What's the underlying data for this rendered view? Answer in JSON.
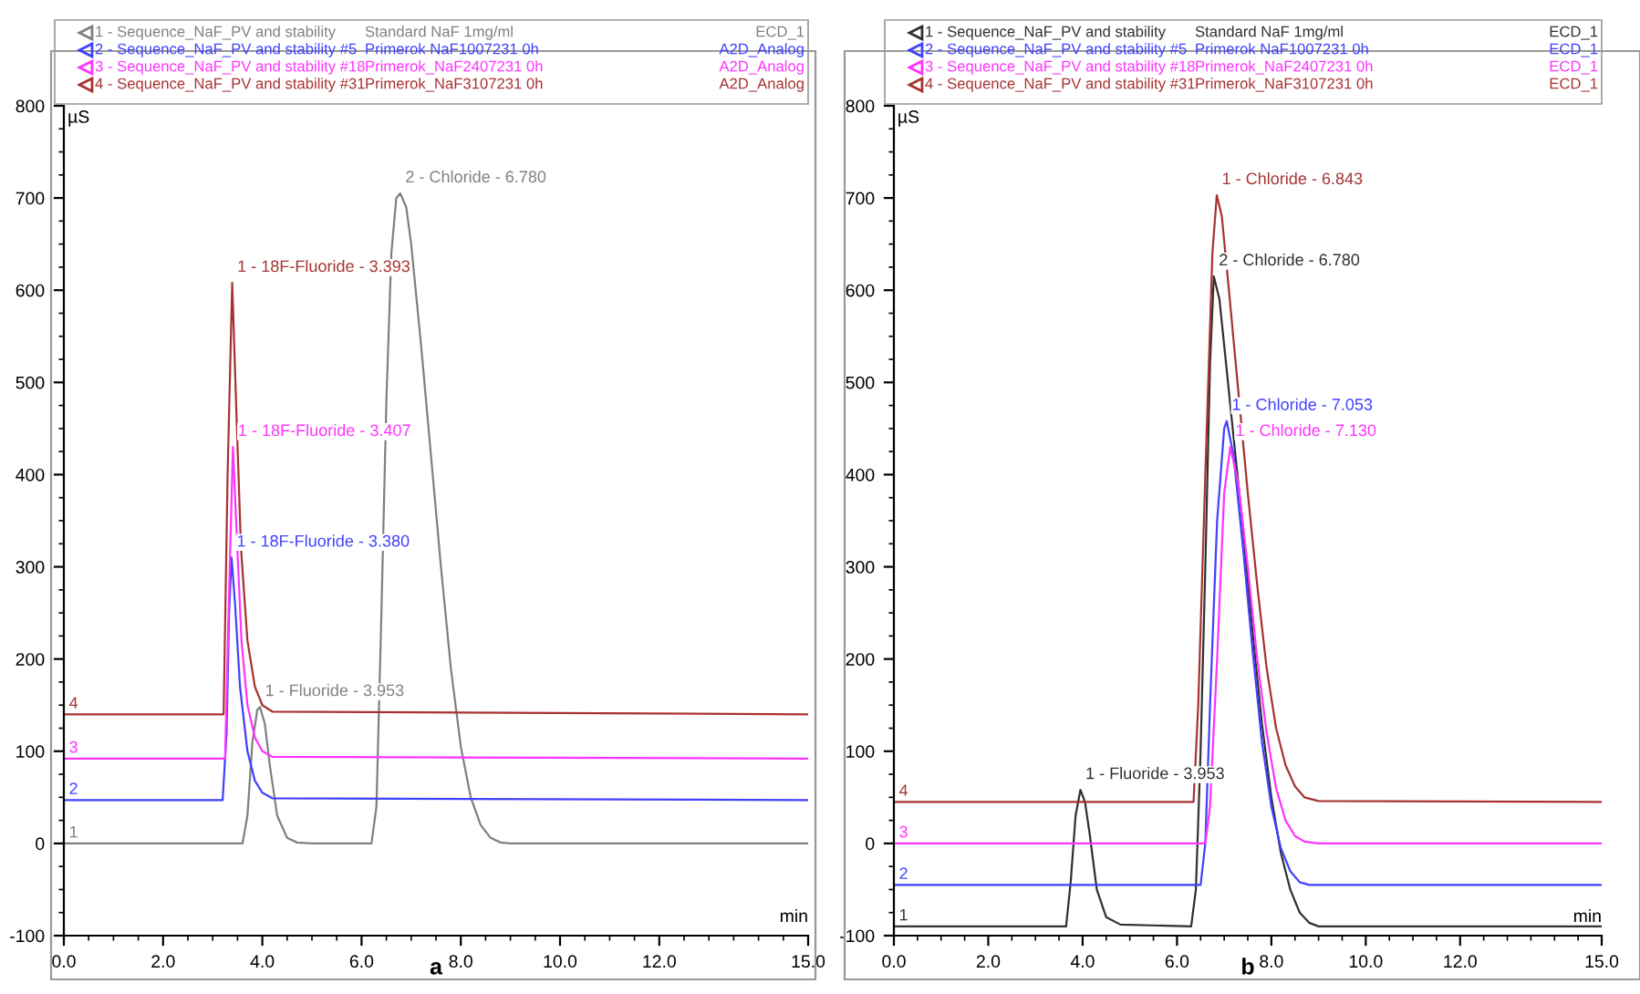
{
  "chart_data": [
    {
      "type": "line",
      "xlabel": "min",
      "ylabel": "µS",
      "legend": "top",
      "grid": false,
      "xlim": [
        0,
        15
      ],
      "ylim": [
        -100,
        800
      ],
      "xticks": [
        {
          "value": 0,
          "label": "0.0"
        },
        {
          "value": 2,
          "label": "2.0"
        },
        {
          "value": 4,
          "label": "4.0"
        },
        {
          "value": 6,
          "label": "6.0"
        },
        {
          "value": 8,
          "label": "8.0"
        },
        {
          "value": 10,
          "label": "10.0"
        },
        {
          "value": 12,
          "label": "12.0"
        },
        {
          "value": 15,
          "label": "15.0"
        }
      ],
      "yticks": [
        -100,
        0,
        100,
        200,
        300,
        400,
        500,
        600,
        700,
        800
      ],
      "series": [
        {
          "name": "1 - Sequence_NaF_PV and stability",
          "color": "#808080",
          "x": [
            0,
            3.6,
            3.7,
            3.8,
            3.9,
            3.953,
            4.05,
            4.15,
            4.3,
            4.5,
            4.7,
            5.0,
            6.2,
            6.3,
            6.4,
            6.5,
            6.6,
            6.7,
            6.78,
            6.9,
            7.0,
            7.2,
            7.4,
            7.6,
            7.8,
            8.0,
            8.2,
            8.4,
            8.6,
            8.8,
            9.0,
            15
          ],
          "values": [
            0,
            0,
            30,
            110,
            145,
            148,
            130,
            85,
            30,
            6,
            1,
            0,
            0,
            40,
            250,
            480,
            640,
            700,
            705,
            690,
            650,
            540,
            420,
            300,
            190,
            105,
            50,
            20,
            6,
            1,
            0,
            0
          ]
        },
        {
          "name": "2 - Sequence_NaF_PV and stability #5",
          "color": "#4040ff",
          "x": [
            0,
            3.2,
            3.28,
            3.33,
            3.38,
            3.45,
            3.55,
            3.7,
            3.85,
            4.0,
            4.2,
            15
          ],
          "values": [
            47,
            47,
            120,
            250,
            310,
            260,
            170,
            100,
            68,
            55,
            49,
            47
          ]
        },
        {
          "name": "3 - Sequence_NaF_PV and stability #18",
          "color": "#ff33ff",
          "x": [
            0,
            3.25,
            3.32,
            3.407,
            3.48,
            3.58,
            3.7,
            3.85,
            4.0,
            4.2,
            15
          ],
          "values": [
            92,
            92,
            250,
            430,
            340,
            220,
            150,
            115,
            100,
            94,
            92
          ]
        },
        {
          "name": "4 - Sequence_NaF_PV and stability #31",
          "color": "#a83232",
          "x": [
            0,
            3.22,
            3.3,
            3.393,
            3.47,
            3.57,
            3.7,
            3.85,
            4.0,
            4.2,
            15
          ],
          "values": [
            140,
            140,
            400,
            608,
            480,
            320,
            220,
            170,
            150,
            143,
            140
          ]
        }
      ],
      "annotations": [
        "Standard NaF 1mg/ml",
        "Primerok NaF1007231 0h",
        "Primerok_NaF2407231 0h",
        "Primerok_NaF3107231 0h",
        "ECD_1",
        "A2D_Analog",
        "A2D_Analog",
        "A2D_Analog",
        "a",
        {
          "text": "2 - Chloride - 6.780",
          "x": 6.78,
          "y": 705
        },
        {
          "text": "1 - 18F-Fluoride - 3.393",
          "x": 3.393,
          "y": 608
        },
        {
          "text": "1 - 18F-Fluoride - 3.407",
          "x": 3.407,
          "y": 430
        },
        {
          "text": "1 - 18F-Fluoride - 3.380",
          "x": 3.38,
          "y": 310
        },
        {
          "text": "1 - Fluoride - 3.953",
          "x": 3.953,
          "y": 148
        },
        {
          "text": "4",
          "x": 0,
          "y": 140
        },
        {
          "text": "3",
          "x": 0,
          "y": 92
        },
        {
          "text": "2",
          "x": 0,
          "y": 47
        },
        {
          "text": "1",
          "x": 0,
          "y": 0
        }
      ]
    },
    {
      "type": "line",
      "xlabel": "min",
      "ylabel": "µS",
      "legend": "top",
      "grid": false,
      "xlim": [
        0,
        15
      ],
      "ylim": [
        -100,
        800
      ],
      "xticks": [
        {
          "value": 0,
          "label": "0.0"
        },
        {
          "value": 2,
          "label": "2.0"
        },
        {
          "value": 4,
          "label": "4.0"
        },
        {
          "value": 6,
          "label": "6.0"
        },
        {
          "value": 8,
          "label": "8.0"
        },
        {
          "value": 10,
          "label": "10.0"
        },
        {
          "value": 12,
          "label": "12.0"
        },
        {
          "value": 15,
          "label": "15.0"
        }
      ],
      "yticks": [
        -100,
        0,
        100,
        200,
        300,
        400,
        500,
        600,
        700,
        800
      ],
      "series": [
        {
          "name": "1 - Sequence_NaF_PV and stability",
          "color": "#303030",
          "x": [
            0,
            3.65,
            3.75,
            3.85,
            3.953,
            4.05,
            4.15,
            4.3,
            4.5,
            4.8,
            6.3,
            6.4,
            6.5,
            6.6,
            6.7,
            6.78,
            6.9,
            7.0,
            7.2,
            7.4,
            7.6,
            7.8,
            8.0,
            8.2,
            8.4,
            8.6,
            8.8,
            9.0,
            15
          ],
          "values": [
            -90,
            -90,
            -40,
            30,
            58,
            45,
            10,
            -50,
            -80,
            -88,
            -90,
            -50,
            100,
            300,
            520,
            615,
            590,
            540,
            440,
            340,
            230,
            130,
            50,
            -10,
            -50,
            -75,
            -86,
            -90,
            -90
          ]
        },
        {
          "name": "2 - Sequence_NaF_PV and stability #5",
          "color": "#4040ff",
          "x": [
            0,
            6.5,
            6.6,
            6.7,
            6.85,
            7.0,
            7.053,
            7.2,
            7.4,
            7.6,
            7.8,
            8.0,
            8.2,
            8.4,
            8.6,
            8.8,
            15
          ],
          "values": [
            -45,
            -45,
            0,
            150,
            350,
            450,
            458,
            420,
            320,
            210,
            110,
            40,
            -5,
            -30,
            -42,
            -45,
            -45
          ]
        },
        {
          "name": "3 - Sequence_NaF_PV and stability #18",
          "color": "#ff33ff",
          "x": [
            0,
            6.6,
            6.7,
            6.85,
            7.0,
            7.13,
            7.3,
            7.5,
            7.7,
            7.9,
            8.1,
            8.3,
            8.5,
            8.7,
            9.0,
            15
          ],
          "values": [
            0,
            0,
            40,
            200,
            380,
            430,
            390,
            300,
            200,
            120,
            60,
            25,
            8,
            2,
            0,
            0
          ]
        },
        {
          "name": "4 - Sequence_NaF_PV and stability #31",
          "color": "#a83232",
          "x": [
            0,
            6.35,
            6.45,
            6.6,
            6.75,
            6.843,
            6.95,
            7.1,
            7.3,
            7.5,
            7.7,
            7.9,
            8.1,
            8.3,
            8.5,
            8.7,
            9.0,
            15
          ],
          "values": [
            45,
            45,
            150,
            400,
            640,
            703,
            680,
            600,
            490,
            380,
            280,
            190,
            125,
            85,
            62,
            50,
            46,
            45
          ]
        }
      ],
      "annotations": [
        "Standard NaF 1mg/ml",
        "Primerok NaF1007231 0h",
        "Primerok_NaF2407231 0h",
        "Primerok_NaF3107231 0h",
        "ECD_1",
        "ECD_1",
        "ECD_1",
        "ECD_1",
        "b",
        {
          "text": "1 - Chloride - 6.843",
          "x": 6.843,
          "y": 703
        },
        {
          "text": "2 - Chloride - 6.780",
          "x": 6.78,
          "y": 615
        },
        {
          "text": "1 - Chloride - 7.053",
          "x": 7.053,
          "y": 458
        },
        {
          "text": "1 - Chloride - 7.130",
          "x": 7.13,
          "y": 430
        },
        {
          "text": "1 - Fluoride - 3.953",
          "x": 3.953,
          "y": 58
        },
        {
          "text": "4",
          "x": 0,
          "y": 45
        },
        {
          "text": "3",
          "x": 0,
          "y": 0
        },
        {
          "text": "2",
          "x": 0,
          "y": -45
        },
        {
          "text": "1",
          "x": 0,
          "y": -90
        }
      ]
    }
  ]
}
